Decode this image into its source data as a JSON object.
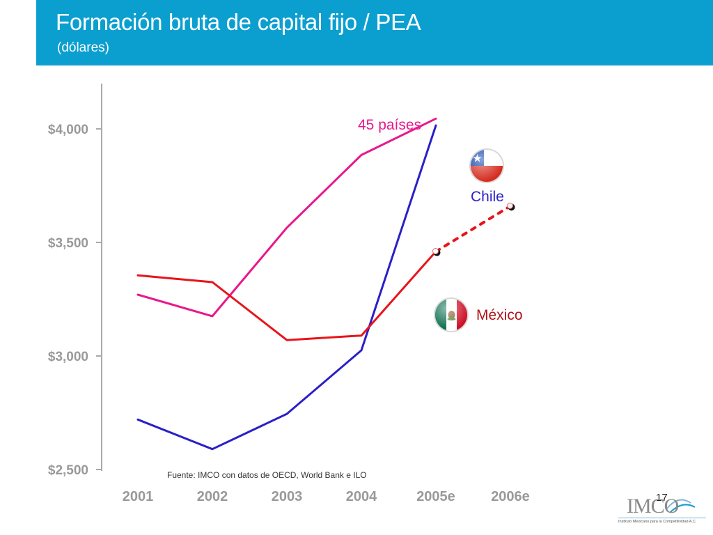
{
  "header": {
    "title": "Formación bruta de capital fijo / PEA",
    "subtitle": "(dólares)"
  },
  "source": "Fuente: IMCO con datos de OECD, World Bank e ILO",
  "page_number": "17",
  "logo": {
    "text": "IMCO",
    "tagline": "Instituto Mexicano para la Competitividad A.C."
  },
  "colors": {
    "header_bg": "#0b9fd0",
    "chile": "#2b1fc8",
    "mexico": "#e8141b",
    "paises": "#e8188c",
    "axis": "#aaaaaa",
    "tick_label": "#999999"
  },
  "chart_data": {
    "type": "line",
    "categories": [
      "2001",
      "2002",
      "2003",
      "2004",
      "2005e",
      "2006e"
    ],
    "ylim": [
      2500,
      4200
    ],
    "y_ticks": [
      2500,
      3000,
      3500,
      4000
    ],
    "y_tick_labels": [
      "$2,500",
      "$3,000",
      "$3,500",
      "$4,000"
    ],
    "grid": false,
    "series": [
      {
        "name": "45 países",
        "color": "#e8188c",
        "values": [
          3270,
          3175,
          3565,
          3885,
          4045,
          null
        ]
      },
      {
        "name": "Chile",
        "color": "#2b1fc8",
        "values": [
          2720,
          2590,
          2745,
          3025,
          4015,
          null
        ]
      },
      {
        "name": "México",
        "color": "#e8141b",
        "values": [
          3355,
          3325,
          3070,
          3090,
          3460,
          null
        ],
        "projection": [
          null,
          null,
          null,
          null,
          3460,
          3660
        ]
      }
    ],
    "icons": {
      "chile": "chile-flag-icon",
      "mexico": "mexico-flag-icon"
    }
  }
}
